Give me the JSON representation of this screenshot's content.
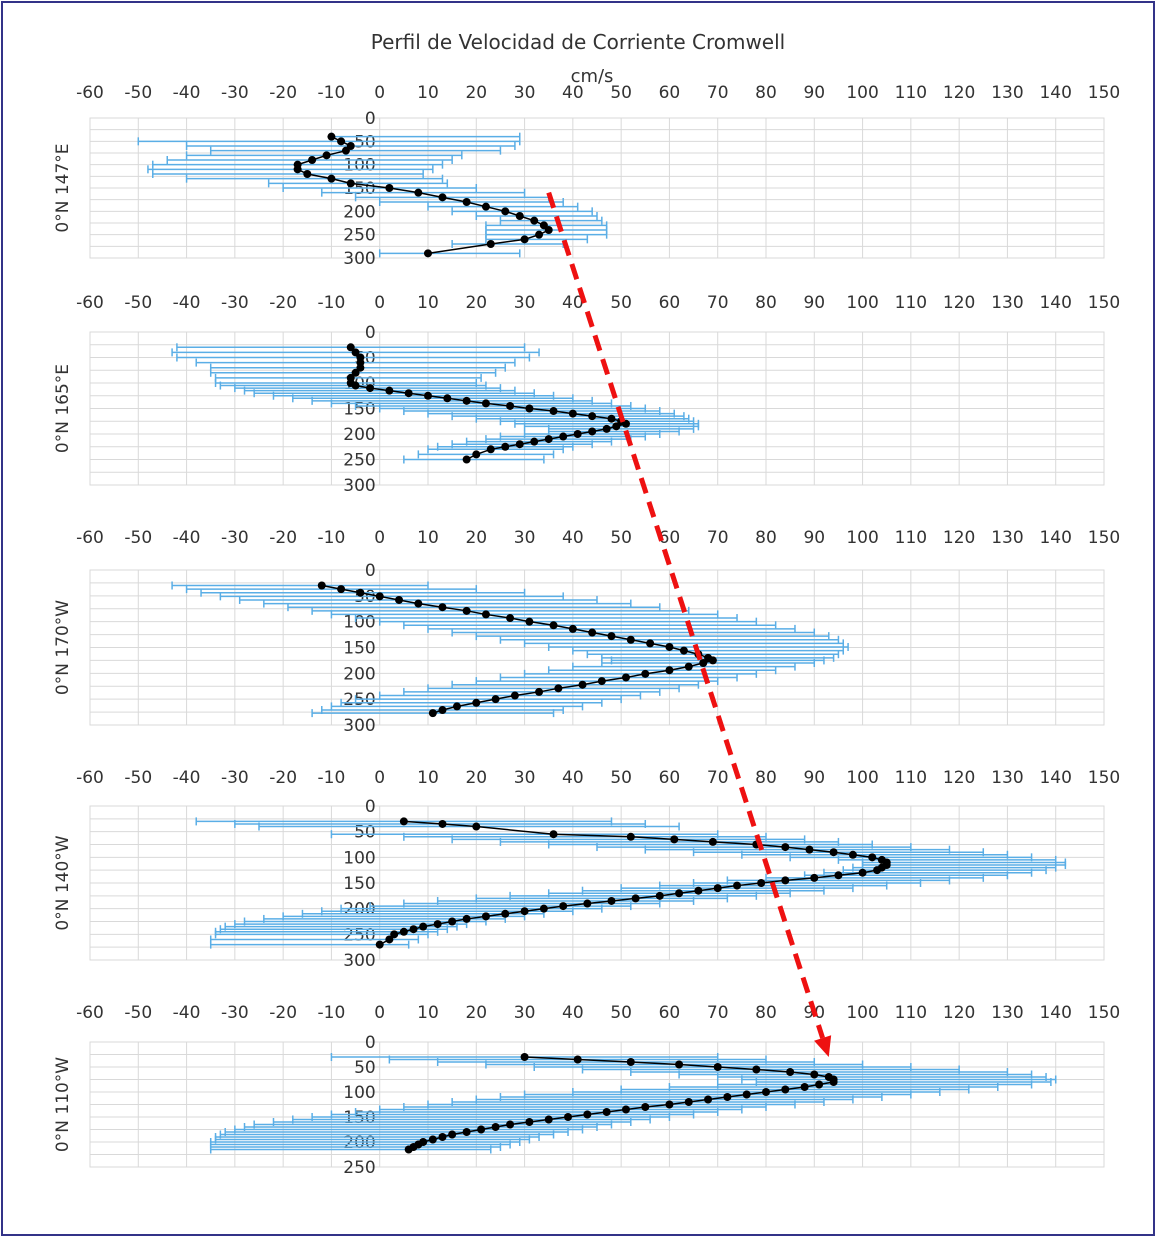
{
  "title": "Perfil de Velocidad de Corriente Cromwell",
  "colors": {
    "errorbar": "#5aaee6",
    "profile": "#000000",
    "grid": "#d9d9d9",
    "arrow": "#ee1111",
    "frame": "#333388"
  },
  "chart_data": [
    {
      "type": "line",
      "panel": "0°N 147°E",
      "ylabel": "0°N 147°E",
      "xlabel": "cm/s",
      "xlim": [
        -60,
        150
      ],
      "ylim": [
        300,
        0
      ],
      "xticks": [
        -60,
        -50,
        -40,
        -30,
        -20,
        -10,
        0,
        10,
        20,
        30,
        40,
        50,
        60,
        70,
        80,
        90,
        100,
        110,
        120,
        130,
        140,
        150
      ],
      "yticks": [
        0,
        50,
        100,
        150,
        200,
        250,
        300
      ],
      "series": [
        {
          "x": [
            -10,
            -8,
            -6,
            -7,
            -11,
            -14,
            -17,
            -17,
            -15,
            -10,
            -6,
            2,
            8,
            13,
            18,
            22,
            26,
            29,
            32,
            34,
            35,
            33,
            30,
            23,
            10
          ],
          "y": [
            40,
            50,
            60,
            70,
            80,
            90,
            100,
            110,
            120,
            130,
            140,
            150,
            160,
            170,
            180,
            190,
            200,
            210,
            220,
            230,
            240,
            250,
            260,
            270,
            290
          ],
          "xerr_lo": [
            -10,
            -50,
            -40,
            -35,
            -40,
            -44,
            -47,
            -48,
            -47,
            -40,
            -23,
            -20,
            -12,
            -5,
            0,
            10,
            15,
            20,
            25,
            22,
            22,
            22,
            22,
            15,
            0
          ],
          "xerr_hi": [
            29,
            29,
            28,
            25,
            17,
            15,
            13,
            11,
            9,
            13,
            14,
            20,
            30,
            35,
            38,
            41,
            44,
            45,
            46,
            47,
            47,
            47,
            43,
            38,
            29
          ]
        }
      ]
    },
    {
      "type": "line",
      "panel": "0°N 165°E",
      "ylabel": "0°N 165°E",
      "xlim": [
        -60,
        150
      ],
      "ylim": [
        300,
        0
      ],
      "xticks": [
        -60,
        -50,
        -40,
        -30,
        -20,
        -10,
        0,
        10,
        20,
        30,
        40,
        50,
        60,
        70,
        80,
        90,
        100,
        110,
        120,
        130,
        140,
        150
      ],
      "yticks": [
        0,
        50,
        100,
        150,
        200,
        250,
        300
      ],
      "series": [
        {
          "x": [
            -6,
            -5,
            -4,
            -4,
            -4,
            -5,
            -6,
            -6,
            -5,
            -2,
            2,
            6,
            10,
            14,
            18,
            22,
            27,
            31,
            36,
            40,
            44,
            48,
            50,
            51,
            49,
            47,
            44,
            41,
            38,
            35,
            32,
            29,
            26,
            23,
            20,
            18
          ],
          "y": [
            30,
            40,
            50,
            60,
            70,
            80,
            90,
            100,
            105,
            110,
            115,
            120,
            125,
            130,
            135,
            140,
            145,
            150,
            155,
            160,
            165,
            170,
            175,
            180,
            185,
            190,
            195,
            200,
            205,
            210,
            215,
            220,
            225,
            230,
            240,
            250
          ],
          "xerr_lo": [
            -42,
            -43,
            -42,
            -38,
            -35,
            -35,
            -34,
            -34,
            -33,
            -30,
            -28,
            -26,
            -22,
            -18,
            -14,
            -10,
            -5,
            0,
            5,
            10,
            15,
            20,
            25,
            28,
            30,
            35,
            35,
            30,
            25,
            22,
            18,
            15,
            12,
            10,
            8,
            5
          ],
          "xerr_hi": [
            30,
            33,
            31,
            28,
            26,
            24,
            21,
            20,
            22,
            25,
            28,
            32,
            36,
            40,
            44,
            48,
            52,
            55,
            58,
            61,
            63,
            64,
            65,
            66,
            66,
            65,
            62,
            58,
            55,
            52,
            48,
            44,
            40,
            38,
            36,
            34
          ]
        }
      ]
    },
    {
      "type": "line",
      "panel": "0°N 170°W",
      "ylabel": "0°N 170°W",
      "xlim": [
        -60,
        150
      ],
      "ylim": [
        300,
        0
      ],
      "xticks": [
        -60,
        -50,
        -40,
        -30,
        -20,
        -10,
        0,
        10,
        20,
        30,
        40,
        50,
        60,
        70,
        80,
        90,
        100,
        110,
        120,
        130,
        140,
        150
      ],
      "yticks": [
        0,
        50,
        100,
        150,
        200,
        250,
        300
      ],
      "series": [
        {
          "x": [
            -12,
            -8,
            -4,
            0,
            4,
            8,
            13,
            18,
            22,
            27,
            31,
            36,
            40,
            44,
            48,
            52,
            56,
            60,
            63,
            66,
            68,
            69,
            67,
            64,
            60,
            55,
            51,
            46,
            42,
            37,
            33,
            28,
            24,
            20,
            16,
            13,
            11
          ],
          "y": [
            30,
            37,
            44,
            51,
            58,
            65,
            72,
            79,
            86,
            93,
            100,
            107,
            114,
            121,
            128,
            135,
            142,
            149,
            156,
            163,
            170,
            175,
            180,
            187,
            194,
            201,
            208,
            215,
            222,
            229,
            236,
            243,
            250,
            257,
            264,
            271,
            277
          ],
          "xerr_lo": [
            -43,
            -40,
            -37,
            -33,
            -29,
            -24,
            -19,
            -14,
            -10,
            -5,
            0,
            5,
            10,
            15,
            20,
            25,
            30,
            35,
            40,
            43,
            46,
            48,
            46,
            40,
            35,
            30,
            25,
            20,
            15,
            10,
            5,
            0,
            -5,
            -8,
            -10,
            -12,
            -14
          ],
          "xerr_hi": [
            10,
            20,
            30,
            38,
            45,
            52,
            58,
            64,
            70,
            74,
            78,
            82,
            86,
            90,
            93,
            95,
            96,
            97,
            96,
            95,
            94,
            92,
            90,
            86,
            82,
            78,
            74,
            70,
            66,
            62,
            58,
            54,
            50,
            46,
            42,
            38,
            36
          ]
        }
      ]
    },
    {
      "type": "line",
      "panel": "0°N 140°W",
      "ylabel": "0°N 140°W",
      "xlim": [
        -60,
        150
      ],
      "ylim": [
        300,
        0
      ],
      "xticks": [
        -60,
        -50,
        -40,
        -30,
        -20,
        -10,
        0,
        10,
        20,
        30,
        40,
        50,
        60,
        70,
        80,
        90,
        100,
        110,
        120,
        130,
        140,
        150
      ],
      "yticks": [
        0,
        50,
        100,
        150,
        200,
        250,
        300
      ],
      "series": [
        {
          "x": [
            5,
            13,
            20,
            36,
            52,
            61,
            69,
            78,
            84,
            89,
            94,
            98,
            102,
            104,
            105,
            105,
            104,
            103,
            100,
            95,
            90,
            84,
            79,
            74,
            70,
            66,
            62,
            58,
            53,
            48,
            43,
            38,
            34,
            30,
            26,
            22,
            18,
            15,
            12,
            9,
            7,
            5,
            3,
            2,
            0
          ],
          "y": [
            30,
            35,
            40,
            55,
            60,
            65,
            70,
            75,
            80,
            85,
            90,
            95,
            100,
            105,
            110,
            115,
            120,
            125,
            130,
            135,
            140,
            145,
            150,
            155,
            160,
            165,
            170,
            175,
            180,
            185,
            190,
            195,
            200,
            205,
            210,
            215,
            220,
            225,
            230,
            235,
            240,
            245,
            250,
            260,
            270
          ],
          "xerr_lo": [
            -38,
            -30,
            -25,
            -10,
            5,
            15,
            25,
            35,
            45,
            55,
            65,
            75,
            85,
            95,
            100,
            100,
            98,
            96,
            92,
            88,
            80,
            72,
            65,
            58,
            50,
            42,
            35,
            27,
            20,
            12,
            5,
            -2,
            -8,
            -12,
            -16,
            -20,
            -24,
            -28,
            -30,
            -32,
            -33,
            -34,
            -34,
            -35,
            -35
          ],
          "xerr_hi": [
            48,
            55,
            62,
            70,
            80,
            88,
            95,
            102,
            110,
            118,
            125,
            130,
            135,
            140,
            142,
            142,
            140,
            138,
            135,
            130,
            125,
            118,
            112,
            105,
            98,
            92,
            85,
            78,
            72,
            65,
            58,
            52,
            46,
            40,
            34,
            30,
            26,
            22,
            18,
            16,
            14,
            12,
            10,
            8,
            6
          ]
        }
      ]
    },
    {
      "type": "line",
      "panel": "0°N 110°W",
      "ylabel": "0°N 110°W",
      "xlim": [
        -60,
        150
      ],
      "ylim": [
        250,
        0
      ],
      "xticks": [
        -60,
        -50,
        -40,
        -30,
        -20,
        -10,
        0,
        10,
        20,
        30,
        40,
        50,
        60,
        70,
        80,
        90,
        100,
        110,
        120,
        130,
        140,
        150
      ],
      "yticks": [
        0,
        50,
        100,
        150,
        200,
        250
      ],
      "series": [
        {
          "x": [
            30,
            41,
            52,
            62,
            70,
            78,
            85,
            90,
            93,
            94,
            94,
            91,
            88,
            84,
            80,
            76,
            72,
            68,
            64,
            60,
            55,
            51,
            47,
            43,
            39,
            35,
            31,
            27,
            24,
            21,
            18,
            15,
            13,
            11,
            9,
            8,
            7,
            6
          ],
          "y": [
            30,
            35,
            40,
            45,
            50,
            55,
            60,
            65,
            70,
            75,
            80,
            85,
            90,
            95,
            100,
            105,
            110,
            115,
            120,
            125,
            130,
            135,
            140,
            145,
            150,
            155,
            160,
            165,
            170,
            175,
            180,
            185,
            190,
            195,
            200,
            205,
            210,
            215
          ],
          "xerr_lo": [
            -10,
            2,
            12,
            22,
            32,
            42,
            52,
            62,
            70,
            75,
            78,
            70,
            60,
            50,
            40,
            30,
            25,
            20,
            15,
            10,
            5,
            0,
            -5,
            -10,
            -14,
            -18,
            -22,
            -26,
            -28,
            -30,
            -32,
            -33,
            -34,
            -34,
            -35,
            -35,
            -35,
            -35
          ],
          "xerr_hi": [
            70,
            80,
            90,
            100,
            110,
            120,
            130,
            135,
            138,
            140,
            139,
            135,
            128,
            122,
            116,
            110,
            104,
            98,
            92,
            86,
            80,
            75,
            70,
            65,
            60,
            56,
            52,
            48,
            45,
            42,
            39,
            36,
            33,
            31,
            29,
            27,
            25,
            23
          ]
        }
      ]
    }
  ],
  "annotation": {
    "type": "dashed-arrow",
    "from_panel": 0,
    "from": [
      35,
      160
    ],
    "to_panel": 4,
    "to": [
      93,
      30
    ]
  }
}
